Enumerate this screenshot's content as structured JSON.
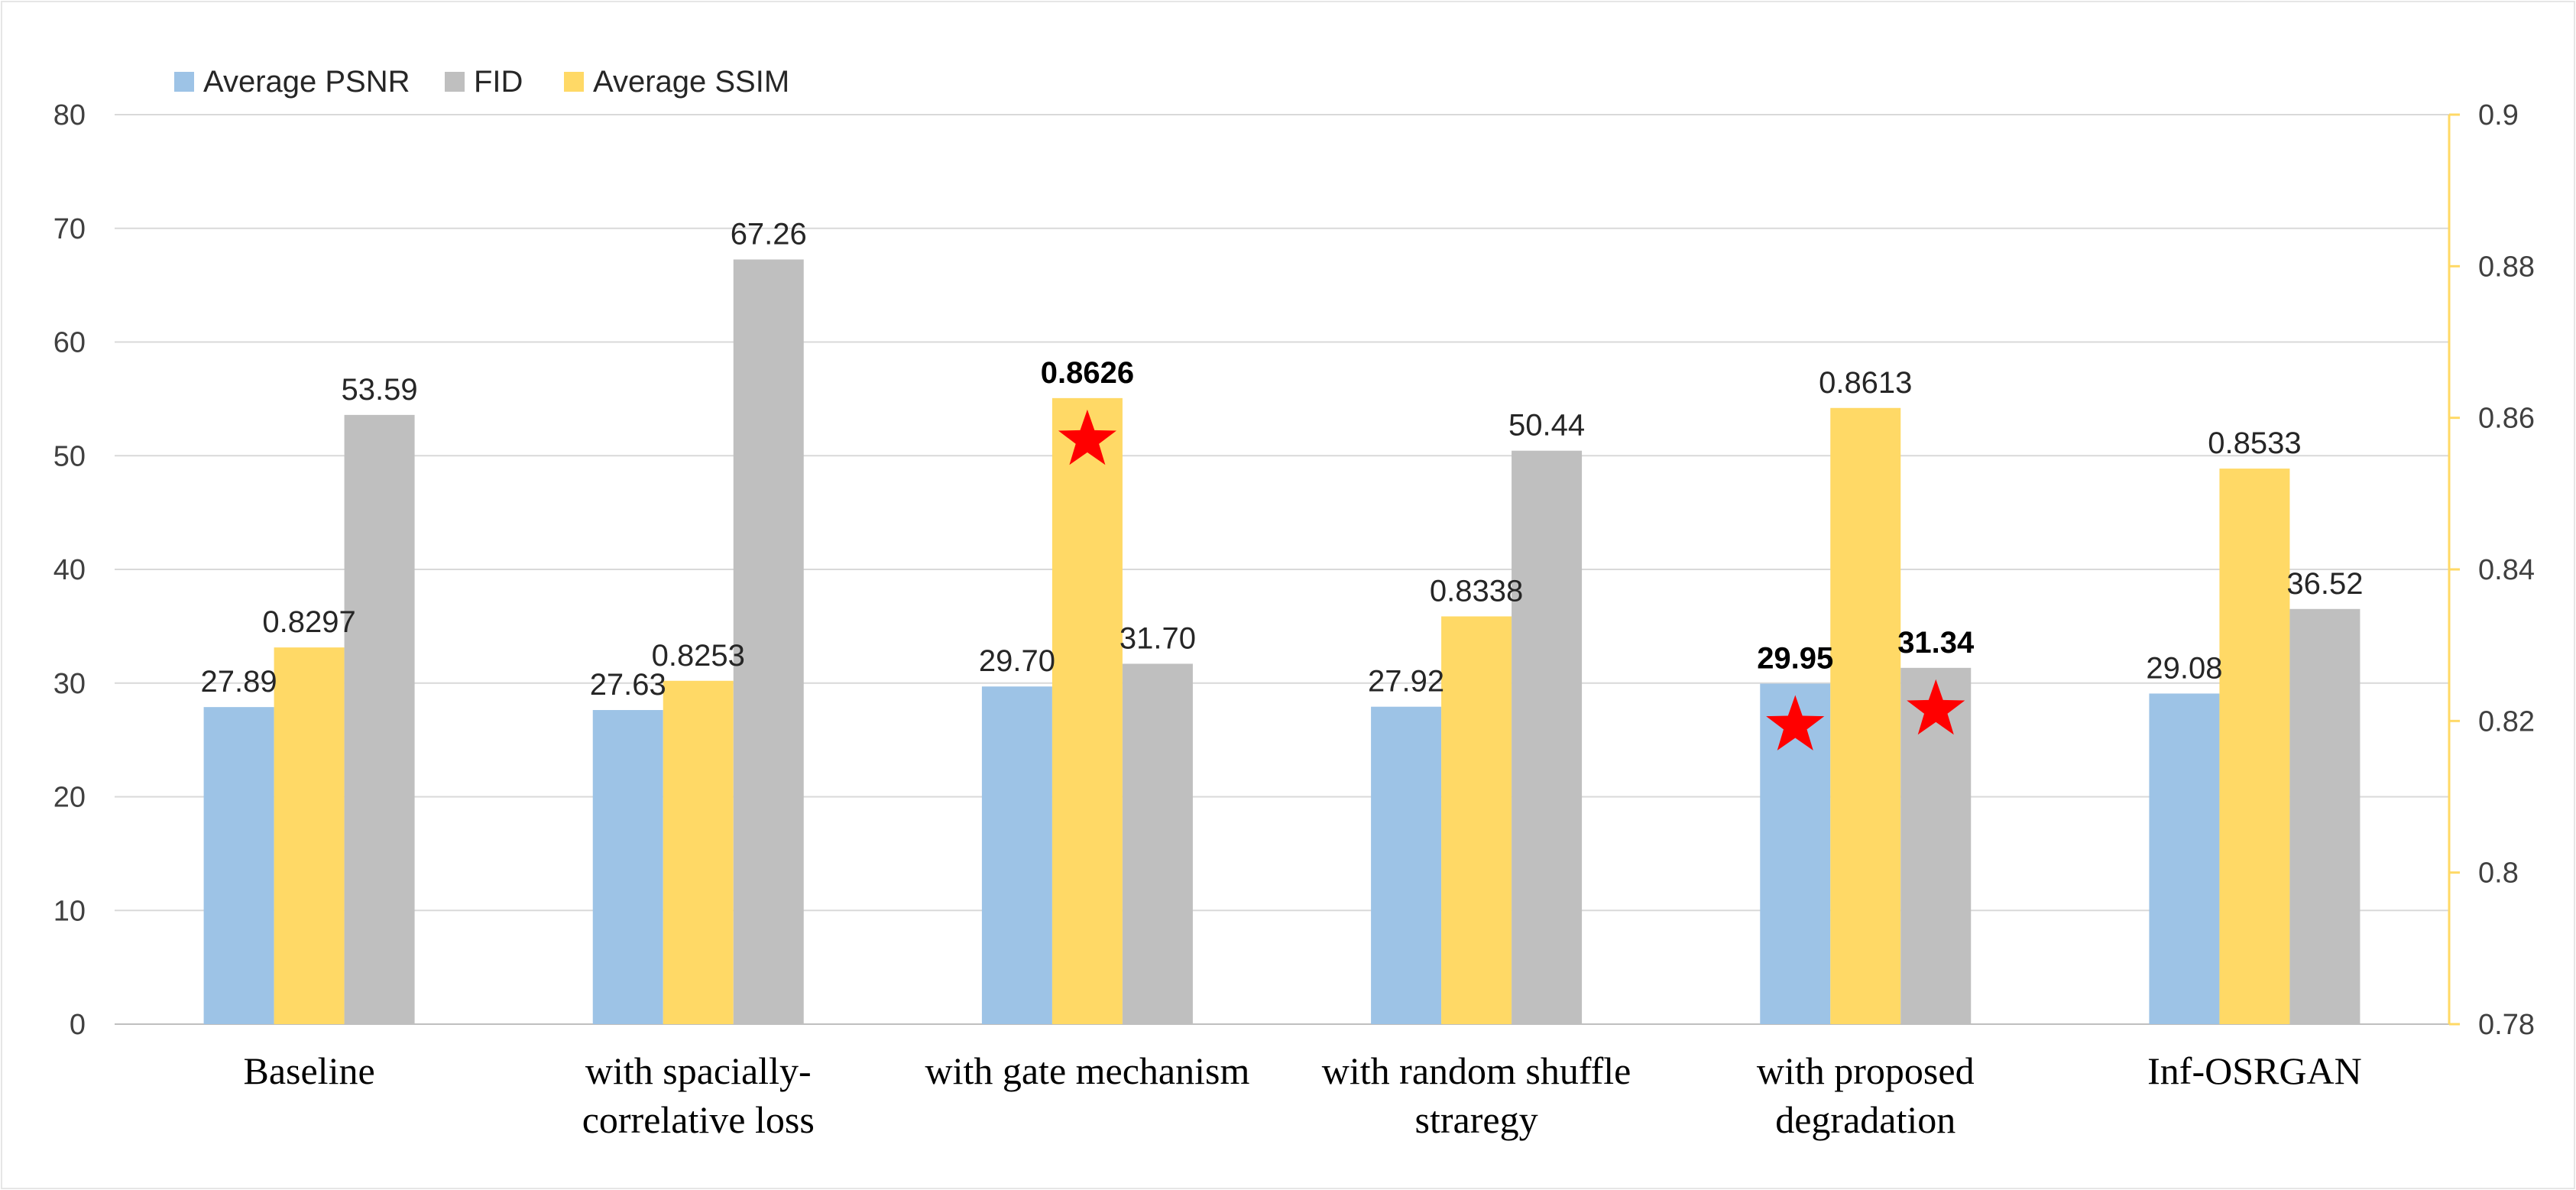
{
  "chart_data": {
    "type": "bar",
    "categories": [
      [
        "Baseline"
      ],
      [
        "with spacially-",
        "correlative loss"
      ],
      [
        "with gate mechanism"
      ],
      [
        "with random shuffle",
        "straregy"
      ],
      [
        "with proposed",
        "degradation"
      ],
      [
        "Inf-OSRGAN"
      ]
    ],
    "series": [
      {
        "name": "Average PSNR",
        "axis": "left",
        "color": "#9DC3E6",
        "values": [
          27.89,
          27.63,
          29.7,
          27.92,
          29.95,
          29.08
        ],
        "labels": [
          "27.89",
          "27.63",
          "29.70",
          "27.92",
          "29.95",
          "29.08"
        ],
        "bold": [
          false,
          false,
          false,
          false,
          true,
          false
        ]
      },
      {
        "name": "Average SSIM",
        "axis": "right",
        "color": "#FFD966",
        "values": [
          0.8297,
          0.8253,
          0.8626,
          0.8338,
          0.8613,
          0.8533
        ],
        "labels": [
          "0.8297",
          "0.8253",
          "0.8626",
          "0.8338",
          "0.8613",
          "0.8533"
        ],
        "bold": [
          false,
          false,
          true,
          false,
          false,
          false
        ]
      },
      {
        "name": "FID",
        "axis": "left",
        "color": "#BFBFBF",
        "values": [
          53.59,
          67.26,
          31.7,
          50.44,
          31.34,
          36.52
        ],
        "labels": [
          "53.59",
          "67.26",
          "31.70",
          "50.44",
          "31.34",
          "36.52"
        ],
        "bold": [
          false,
          false,
          false,
          false,
          true,
          false
        ]
      }
    ],
    "legend_order": [
      "Average PSNR",
      "FID",
      "Average SSIM"
    ],
    "left_axis": {
      "min": 0,
      "max": 80,
      "ticks": [
        "0",
        "10",
        "20",
        "30",
        "40",
        "50",
        "60",
        "70",
        "80"
      ]
    },
    "right_axis": {
      "min": 0.78,
      "max": 0.9,
      "ticks": [
        "0.78",
        "0.8",
        "0.82",
        "0.84",
        "0.86",
        "0.88",
        "0.9"
      ]
    },
    "stars": [
      {
        "category": 2,
        "series": "Average SSIM"
      },
      {
        "category": 4,
        "series": "Average PSNR"
      },
      {
        "category": 4,
        "series": "FID"
      }
    ],
    "star_color": "#FF0000",
    "grid": true,
    "legend_position": "top-left"
  }
}
